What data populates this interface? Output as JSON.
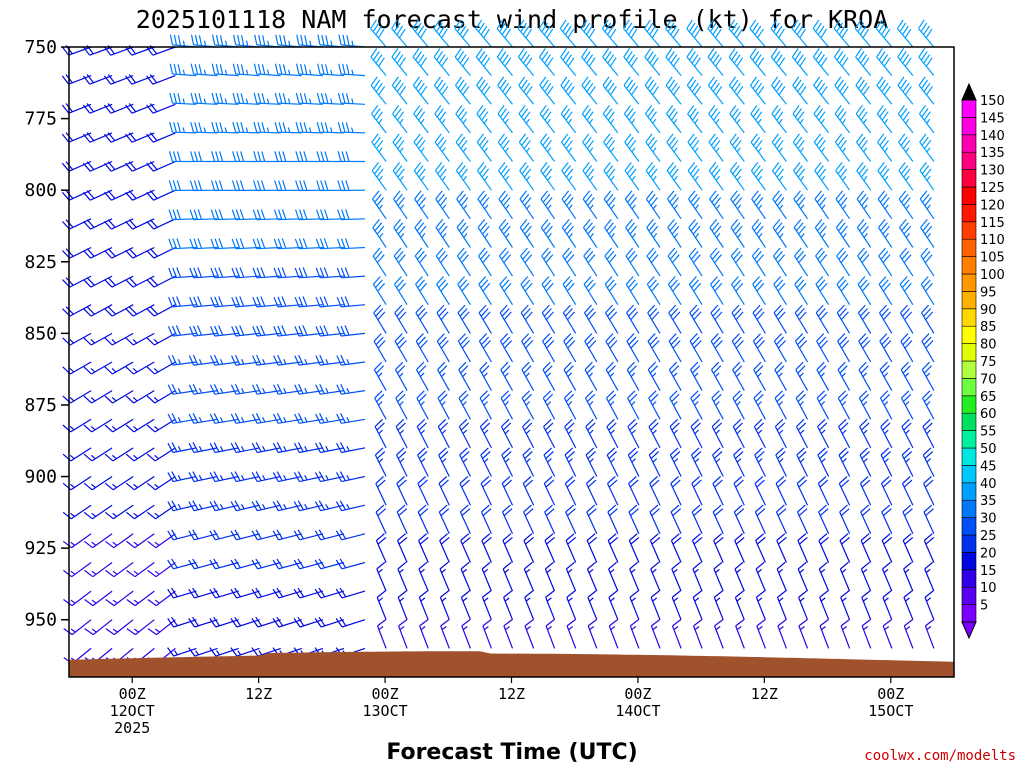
{
  "chart_data": {
    "type": "wind-barb time-height profile",
    "title": "2025101118 NAM forecast wind profile (kt) for KROA",
    "xlabel": "Forecast Time (UTC)",
    "credit": "coolwx.com/modelts",
    "y_unit": "hPa",
    "yticks": [
      750,
      775,
      800,
      825,
      850,
      875,
      900,
      925,
      950
    ],
    "ylim": [
      750,
      970
    ],
    "xticks": [
      {
        "label": "00Z",
        "sub": "12OCT",
        "sub2": "2025",
        "hour": 6
      },
      {
        "label": "12Z",
        "sub": "",
        "sub2": "",
        "hour": 18
      },
      {
        "label": "00Z",
        "sub": "13OCT",
        "sub2": "",
        "hour": 30
      },
      {
        "label": "12Z",
        "sub": "",
        "sub2": "",
        "hour": 42
      },
      {
        "label": "00Z",
        "sub": "14OCT",
        "sub2": "",
        "hour": 54
      },
      {
        "label": "12Z",
        "sub": "",
        "sub2": "",
        "hour": 66
      },
      {
        "label": "00Z",
        "sub": "15OCT",
        "sub2": "",
        "hour": 78
      }
    ],
    "forecast_hours": [
      0,
      84
    ],
    "colorbar": {
      "unit": "kt",
      "levels": [
        5,
        10,
        15,
        20,
        25,
        30,
        35,
        40,
        45,
        50,
        55,
        60,
        65,
        70,
        75,
        80,
        85,
        90,
        95,
        100,
        105,
        110,
        115,
        120,
        125,
        130,
        135,
        140,
        145,
        150
      ],
      "colors": [
        "#7a00ff",
        "#5a00f0",
        "#3000e8",
        "#0008e0",
        "#0030ee",
        "#0050f5",
        "#0078f8",
        "#00a0ff",
        "#00c8ff",
        "#00e6e0",
        "#00f0a0",
        "#00e060",
        "#22ee22",
        "#70ff40",
        "#b0ff40",
        "#e0ff00",
        "#ffff00",
        "#ffd800",
        "#ffb000",
        "#ff9800",
        "#ff8000",
        "#ff6000",
        "#ff4000",
        "#ff1800",
        "#ff0000",
        "#ff0040",
        "#ff0080",
        "#ff00b0",
        "#ff00e0",
        "#ff00ff"
      ]
    },
    "terrain_color": "#a0522d",
    "wind_fields": {
      "note": "barbs coloured by speed; low levels westerly-southwesterly early, strong westerly 25-35 kt aloft day 1, shifting to northwesterly 20-40 kt after hour 30",
      "periods": [
        {
          "hours": [
            0,
            12
          ],
          "dir_low_deg": 230,
          "dir_high_deg": 250,
          "speed_low_kt": 12,
          "speed_high_kt": 20
        },
        {
          "hours": [
            12,
            30
          ],
          "dir_low_deg": 250,
          "dir_high_deg": 275,
          "speed_low_kt": 15,
          "speed_high_kt": 35
        },
        {
          "hours": [
            30,
            84
          ],
          "dir_low_deg": 340,
          "dir_high_deg": 320,
          "speed_low_kt": 10,
          "speed_high_kt": 40
        }
      ]
    }
  }
}
